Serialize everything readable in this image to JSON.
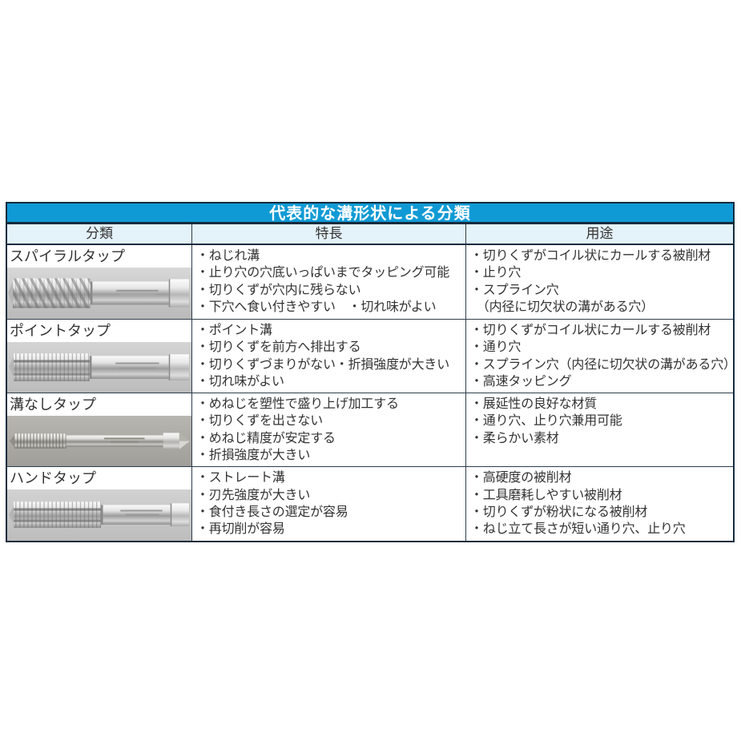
{
  "colors": {
    "title_bg": "#109ad5",
    "title_text": "#ffffff",
    "header_bg": "#e4f2f9",
    "border_dark": "#152c3e",
    "border_inner": "#2e3d4d",
    "body_text": "#333333"
  },
  "table": {
    "title": "代表的な溝形状による分類",
    "columns": [
      "分類",
      "特長",
      "用途"
    ],
    "rows": [
      {
        "name": "スパイラルタップ",
        "image_name": "spiral-tap-photo",
        "features": [
          "・ねじれ溝",
          "・止り穴の穴底いっぱいまでタッピング可能",
          "・切りくずが穴内に残らない",
          "・下穴へ食い付きやすい　・切れ味がよい"
        ],
        "uses": [
          "・切りくずがコイル状にカールする被削材",
          "・止り穴",
          "・スプライン穴",
          "　（内径に切欠状の溝がある穴）"
        ]
      },
      {
        "name": "ポイントタップ",
        "image_name": "point-tap-photo",
        "features": [
          "・ポイント溝",
          "・切りくずを前方へ排出する",
          "・切りくずづまりがない・折損強度が大きい",
          "・切れ味がよい"
        ],
        "uses": [
          "・切りくずがコイル状にカールする被削材",
          "・通り穴",
          "・スプライン穴（内径に切欠状の溝がある穴）",
          "・高速タッピング"
        ]
      },
      {
        "name": "溝なしタップ",
        "image_name": "fluteless-tap-photo",
        "features": [
          "・めねじを塑性で盛り上げ加工する",
          "・切りくずを出さない",
          "・めねじ精度が安定する",
          "・折損強度が大きい"
        ],
        "uses": [
          "・展延性の良好な材質",
          "・通り穴、止り穴兼用可能",
          "・柔らかい素材"
        ]
      },
      {
        "name": "ハンドタップ",
        "image_name": "hand-tap-photo",
        "features": [
          "・ストレート溝",
          "・刃先強度が大きい",
          "・食付き長さの選定が容易",
          "・再切削が容易"
        ],
        "uses": [
          "・高硬度の被削材",
          "・工具磨耗しやすい被削材",
          "・切りくずが粉状になる被削材",
          "・ねじ立て長さが短い通り穴、止り穴"
        ]
      }
    ]
  }
}
